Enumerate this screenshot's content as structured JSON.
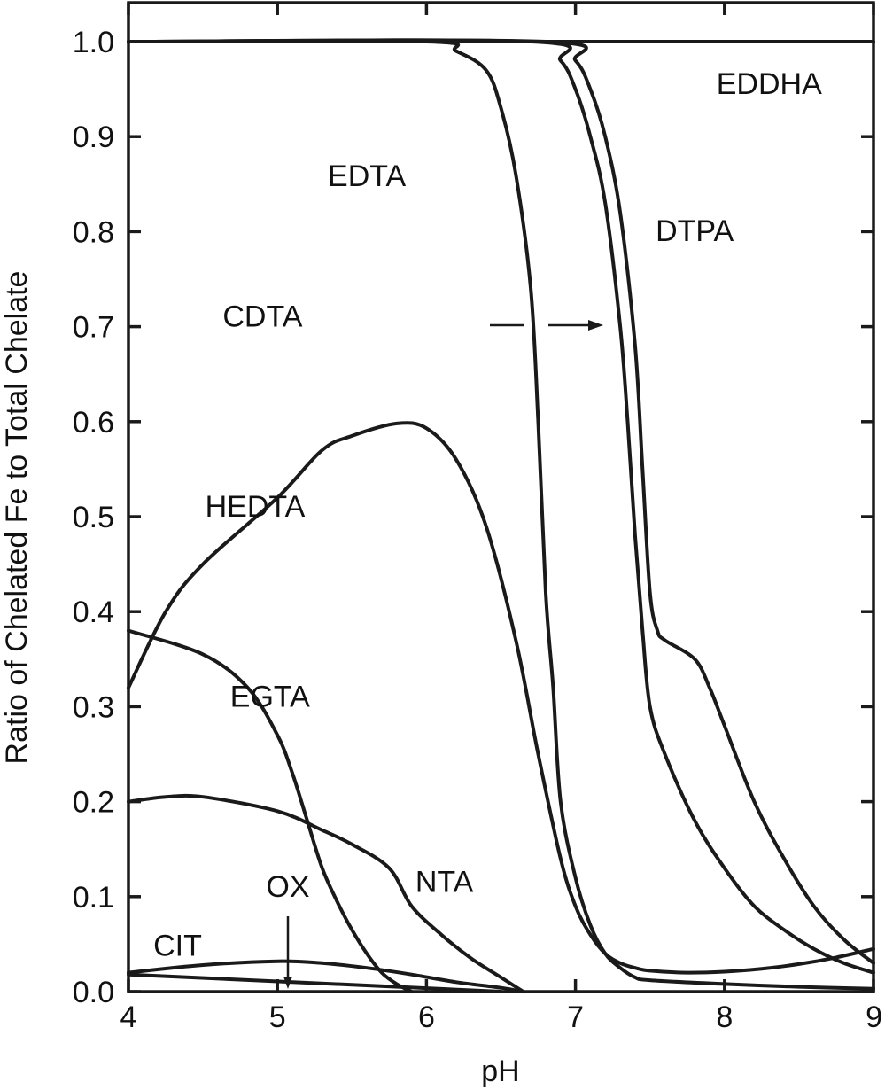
{
  "chart_data": {
    "type": "line",
    "title": "",
    "xlabel": "pH",
    "ylabel": "Ratio of Chelated Fe to Total Chelate",
    "xlim": [
      4,
      9
    ],
    "ylim": [
      0.0,
      1.0
    ],
    "x_ticks": [
      "4",
      "5",
      "6",
      "7",
      "8",
      "9"
    ],
    "y_ticks": [
      "0.0",
      "0.1",
      "0.2",
      "0.3",
      "0.4",
      "0.5",
      "0.6",
      "0.7",
      "0.8",
      "0.9",
      "1.0"
    ],
    "grid": false,
    "legend": "none (curves labeled directly)",
    "series": [
      {
        "name": "EDDHA",
        "x": [
          4,
          9
        ],
        "y": [
          1.0,
          1.0
        ]
      },
      {
        "name": "EDTA",
        "x": [
          4,
          6.0,
          6.2,
          6.4,
          6.5,
          6.6,
          6.7,
          6.75,
          6.8,
          6.85,
          6.9,
          7.0,
          7.1,
          7.2,
          7.3,
          7.4,
          7.5,
          8.0,
          8.5,
          9.0
        ],
        "y": [
          1.0,
          1.0,
          0.99,
          0.97,
          0.93,
          0.86,
          0.74,
          0.6,
          0.42,
          0.32,
          0.2,
          0.12,
          0.07,
          0.04,
          0.025,
          0.015,
          0.012,
          0.008,
          0.005,
          0.003
        ]
      },
      {
        "name": "CDTA",
        "x": [
          4,
          6.7,
          6.9,
          7.0,
          7.1,
          7.2,
          7.3,
          7.35,
          7.4,
          7.45,
          7.5,
          7.6,
          7.8,
          8.0,
          8.2,
          8.4,
          8.6,
          8.8,
          9.0
        ],
        "y": [
          1.0,
          1.0,
          0.98,
          0.95,
          0.9,
          0.83,
          0.7,
          0.6,
          0.48,
          0.38,
          0.3,
          0.25,
          0.18,
          0.13,
          0.09,
          0.065,
          0.045,
          0.03,
          0.02
        ]
      },
      {
        "name": "DTPA",
        "x": [
          4,
          6.8,
          7.0,
          7.1,
          7.2,
          7.3,
          7.4,
          7.45,
          7.5,
          7.55,
          7.6,
          7.8,
          7.9,
          8.0,
          8.2,
          8.4,
          8.6,
          8.8,
          9.0
        ],
        "y": [
          1.0,
          1.0,
          0.98,
          0.95,
          0.9,
          0.82,
          0.68,
          0.55,
          0.42,
          0.38,
          0.37,
          0.35,
          0.32,
          0.28,
          0.2,
          0.14,
          0.09,
          0.055,
          0.03
        ]
      },
      {
        "name": "HEDTA",
        "x": [
          4,
          4.25,
          4.5,
          5.0,
          5.3,
          5.5,
          5.8,
          6.0,
          6.2,
          6.4,
          6.6,
          6.75,
          6.9,
          7.0,
          7.1,
          7.2,
          7.3,
          7.4,
          7.5,
          7.75,
          8.0,
          8.25,
          8.5,
          8.75,
          9.0
        ],
        "y": [
          0.32,
          0.4,
          0.45,
          0.52,
          0.57,
          0.585,
          0.598,
          0.593,
          0.56,
          0.49,
          0.37,
          0.25,
          0.14,
          0.09,
          0.06,
          0.04,
          0.03,
          0.025,
          0.022,
          0.02,
          0.021,
          0.024,
          0.029,
          0.036,
          0.045
        ]
      },
      {
        "name": "EGTA",
        "x": [
          4,
          4.5,
          4.8,
          5.0,
          5.1,
          5.2,
          5.3,
          5.4,
          5.5,
          5.6,
          5.7,
          5.8,
          5.9
        ],
        "y": [
          0.38,
          0.355,
          0.32,
          0.27,
          0.23,
          0.18,
          0.13,
          0.095,
          0.065,
          0.04,
          0.02,
          0.008,
          0.0
        ]
      },
      {
        "name": "NTA",
        "x": [
          4,
          4.25,
          4.5,
          5.0,
          5.3,
          5.5,
          5.75,
          5.9,
          6.1,
          6.3,
          6.5,
          6.65
        ],
        "y": [
          0.2,
          0.205,
          0.205,
          0.19,
          0.17,
          0.155,
          0.13,
          0.09,
          0.06,
          0.035,
          0.015,
          0.0
        ]
      },
      {
        "name": "OX",
        "x": [
          4,
          4.5,
          5.0,
          5.3,
          5.6,
          5.9,
          6.2,
          6.5,
          6.65
        ],
        "y": [
          0.02,
          0.028,
          0.032,
          0.03,
          0.025,
          0.018,
          0.01,
          0.004,
          0.0
        ]
      },
      {
        "name": "CIT",
        "x": [
          4,
          6.5
        ],
        "y": [
          0.018,
          0.0
        ]
      }
    ],
    "labels": [
      {
        "text": "EDDHA",
        "x": 8.3,
        "y": 0.945
      },
      {
        "text": "EDTA",
        "x": 5.6,
        "y": 0.848
      },
      {
        "text": "DTPA",
        "x": 7.8,
        "y": 0.79
      },
      {
        "text": "CDTA",
        "x": 4.9,
        "y": 0.7
      },
      {
        "text": "HEDTA",
        "x": 4.85,
        "y": 0.5
      },
      {
        "text": "EGTA",
        "x": 4.95,
        "y": 0.3
      },
      {
        "text": "NTA",
        "x": 6.12,
        "y": 0.105
      },
      {
        "text": "OX",
        "x": 5.07,
        "y": 0.1
      },
      {
        "text": "CIT",
        "x": 4.33,
        "y": 0.038
      }
    ]
  }
}
